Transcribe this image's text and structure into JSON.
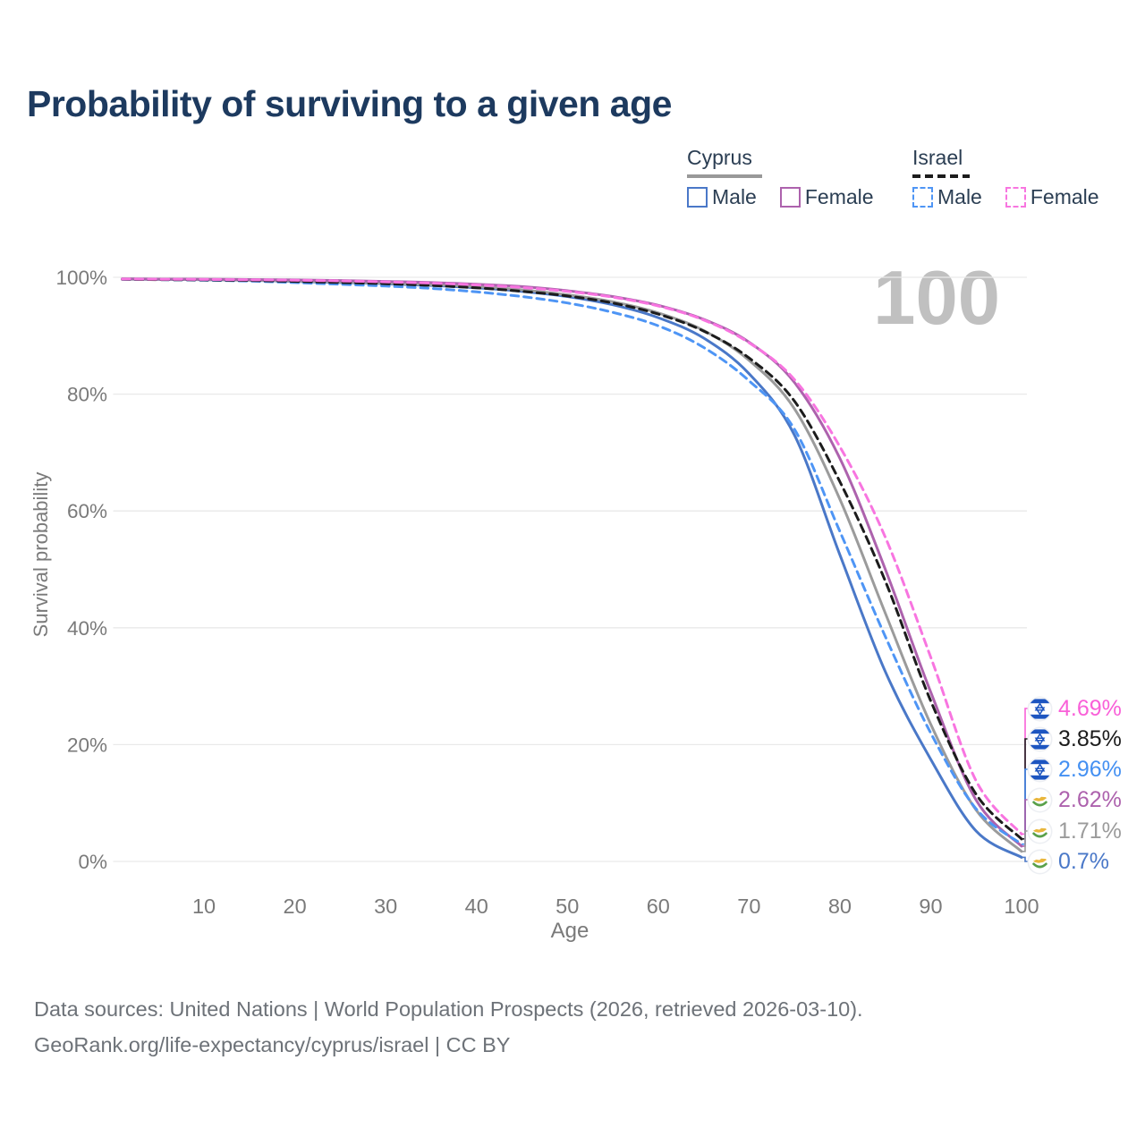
{
  "title": "Probability of surviving to a given age",
  "legend": {
    "groups": [
      {
        "name": "Cyprus",
        "style": "solid",
        "underline_color": "#999999",
        "items": [
          {
            "label": "Male",
            "color": "#4a78c8"
          },
          {
            "label": "Female",
            "color": "#ad62ad"
          }
        ]
      },
      {
        "name": "Israel",
        "style": "dashed",
        "underline_color": "#1c1c1c",
        "items": [
          {
            "label": "Male",
            "color": "#4e95f5"
          },
          {
            "label": "Female",
            "color": "#f875e0"
          }
        ]
      }
    ]
  },
  "end_labels": [
    {
      "flag": "israel",
      "text": "4.69%",
      "value": 4.69,
      "color": "#f960d8",
      "series": "Israel Female"
    },
    {
      "flag": "israel",
      "text": "3.85%",
      "value": 3.85,
      "color": "#1c1c1c",
      "series": "Israel Both sexes"
    },
    {
      "flag": "israel",
      "text": "2.96%",
      "value": 2.96,
      "color": "#4490f2",
      "series": "Israel Male"
    },
    {
      "flag": "cyprus",
      "text": "2.62%",
      "value": 2.62,
      "color": "#ad62ad",
      "series": "Cyprus Female"
    },
    {
      "flag": "cyprus",
      "text": "1.71%",
      "value": 1.71,
      "color": "#9b9b9b",
      "series": "Cyprus Both sexes"
    },
    {
      "flag": "cyprus",
      "text": "0.7%",
      "value": 0.7,
      "color": "#4a78c8",
      "series": "Cyprus Male"
    }
  ],
  "footer": {
    "line1": "Data sources: United Nations | World Population Prospects (2026, retrieved 2026-03-10).",
    "line2": "GeoRank.org/life-expectancy/cyprus/israel | CC BY"
  },
  "chart_data": {
    "type": "line",
    "title": "Probability of surviving to a given age",
    "xlabel": "Age",
    "ylabel": "Survival probability",
    "watermark_age_label": "100",
    "x_range": [
      0,
      100
    ],
    "y_range_percent": [
      0,
      100
    ],
    "grid": "horizontal",
    "legend_position": "top-right",
    "x_tick_labels": [
      "10",
      "20",
      "30",
      "40",
      "50",
      "60",
      "70",
      "80",
      "90",
      "100"
    ],
    "y_tick_labels": [
      "100%",
      "80%",
      "60%",
      "40%",
      "20%",
      "0%"
    ],
    "ages": [
      1,
      5,
      10,
      15,
      20,
      25,
      30,
      35,
      40,
      45,
      50,
      55,
      60,
      65,
      70,
      75,
      80,
      85,
      90,
      95,
      100
    ],
    "series": [
      {
        "name": "Cyprus Male",
        "country": "Cyprus",
        "sex": "Male",
        "color": "#4a78c8",
        "dash": "solid",
        "end_label": "0.7%",
        "values": [
          99.7,
          99.65,
          99.6,
          99.5,
          99.3,
          99.1,
          98.9,
          98.6,
          98.2,
          97.6,
          96.7,
          95.3,
          93.1,
          89.6,
          83.5,
          73.0,
          52.5,
          32.5,
          17.5,
          5.2,
          0.7
        ]
      },
      {
        "name": "Cyprus Both sexes",
        "country": "Cyprus",
        "sex": "Both",
        "color": "#9b9b9b",
        "dash": "solid",
        "end_label": "1.71%",
        "values": [
          99.7,
          99.65,
          99.6,
          99.5,
          99.35,
          99.2,
          99.0,
          98.75,
          98.4,
          97.85,
          97.0,
          95.8,
          93.9,
          90.9,
          85.8,
          77.5,
          62.0,
          42.5,
          23.5,
          8.8,
          1.71
        ]
      },
      {
        "name": "Cyprus Female",
        "country": "Cyprus",
        "sex": "Female",
        "color": "#ad62ad",
        "dash": "solid",
        "end_label": "2.62%",
        "values": [
          99.75,
          99.7,
          99.68,
          99.62,
          99.55,
          99.45,
          99.3,
          99.1,
          98.8,
          98.4,
          97.7,
          96.7,
          95.2,
          92.8,
          88.9,
          82.0,
          69.0,
          50.0,
          29.0,
          10.5,
          2.62
        ]
      },
      {
        "name": "Israel Male",
        "country": "Israel",
        "sex": "Male",
        "color": "#4e95f5",
        "dash": "dashed",
        "end_label": "2.96%",
        "values": [
          99.65,
          99.6,
          99.5,
          99.35,
          99.1,
          98.8,
          98.5,
          98.1,
          97.5,
          96.7,
          95.6,
          94.0,
          91.7,
          88.0,
          82.3,
          74.0,
          56.5,
          38.5,
          22.0,
          9.0,
          2.96
        ]
      },
      {
        "name": "Israel Both sexes",
        "country": "Israel",
        "sex": "Both",
        "color": "#1c1c1c",
        "dash": "dashed",
        "end_label": "3.85%",
        "values": [
          99.65,
          99.6,
          99.55,
          99.45,
          99.3,
          99.1,
          98.9,
          98.6,
          98.2,
          97.6,
          96.8,
          95.6,
          93.7,
          90.8,
          86.2,
          78.8,
          65.0,
          48.0,
          27.5,
          11.5,
          3.85
        ]
      },
      {
        "name": "Israel Female",
        "country": "Israel",
        "sex": "Female",
        "color": "#f875e0",
        "dash": "dashed",
        "end_label": "4.69%",
        "values": [
          99.7,
          99.67,
          99.63,
          99.57,
          99.5,
          99.38,
          99.22,
          99.0,
          98.7,
          98.25,
          97.6,
          96.6,
          95.1,
          92.7,
          88.8,
          82.5,
          71.0,
          55.5,
          35.0,
          13.8,
          4.69
        ]
      }
    ]
  }
}
